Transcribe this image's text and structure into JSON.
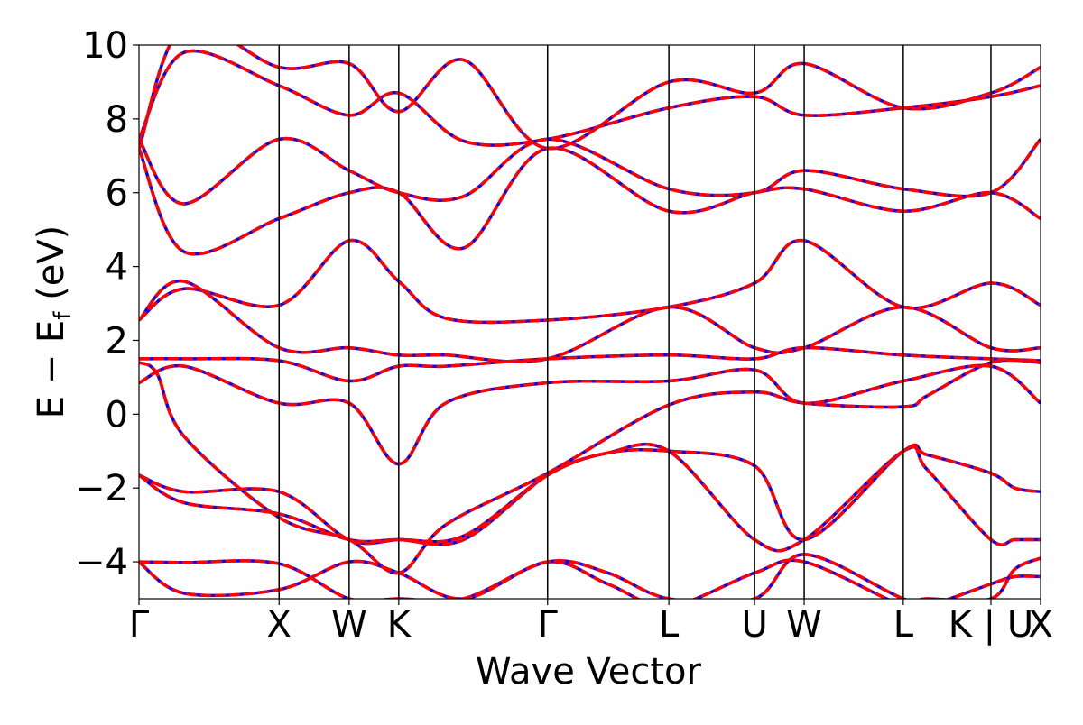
{
  "chart_data": {
    "type": "line",
    "title": "",
    "xlabel": "Wave Vector",
    "ylabel": "E − E",
    "ylabel_sub": "f",
    "ylabel_unit": " (eV)",
    "ylim": [
      -5,
      10
    ],
    "yticks": [
      -4,
      -2,
      0,
      2,
      4,
      6,
      8,
      10
    ],
    "ytick_labels": [
      "−4",
      "−2",
      "0",
      "2",
      "4",
      "6",
      "8",
      "10"
    ],
    "xlim": [
      0,
      1
    ],
    "kpoints": [
      {
        "label": "Γ",
        "x": 0.0
      },
      {
        "label": "X",
        "x": 0.1554
      },
      {
        "label": "W",
        "x": 0.2331
      },
      {
        "label": "K",
        "x": 0.2881
      },
      {
        "label": "Γ",
        "x": 0.4532
      },
      {
        "label": "L",
        "x": 0.5877
      },
      {
        "label": "U",
        "x": 0.6828
      },
      {
        "label": "W",
        "x": 0.7378
      },
      {
        "label": "L",
        "x": 0.8477
      },
      {
        "label": "K | U",
        "x": 0.9449
      },
      {
        "label": "X",
        "x": 1.0
      }
    ],
    "series_styles": [
      {
        "color": "#0000ff",
        "linestyle": "solid"
      },
      {
        "color": "#ff0000",
        "linestyle": "dashed"
      }
    ],
    "bands": [
      {
        "x": [
          0,
          0.05,
          0.1554,
          0.2331,
          0.2881,
          0.36,
          0.4532,
          0.52,
          0.5877,
          0.6828,
          0.7378,
          0.8477,
          0.8742,
          0.9449,
          0.9713,
          1.0
        ],
        "y": [
          -4.0,
          -4.02,
          -4.05,
          -5.0,
          -5.0,
          -5.0,
          -4.0,
          -4.3,
          -5.0,
          -5.0,
          -3.8,
          -5.0,
          -5.0,
          -5.0,
          -4.2,
          -3.9
        ]
      },
      {
        "x": [
          0,
          0.05,
          0.1554,
          0.2331,
          0.2881,
          0.36,
          0.4532,
          0.52,
          0.5877,
          0.6828,
          0.7378,
          0.8477,
          0.8742,
          0.9449,
          0.9713,
          1.0
        ],
        "y": [
          -4.0,
          -4.85,
          -4.75,
          -4.0,
          -4.3,
          -5.0,
          -4.0,
          -4.6,
          -5.2,
          -4.3,
          -4.0,
          -5.2,
          -5.2,
          -4.6,
          -4.4,
          -4.4
        ]
      },
      {
        "x": [
          0,
          0.05,
          0.1554,
          0.2331,
          0.2881,
          0.36,
          0.4532,
          0.52,
          0.5877,
          0.6828,
          0.7378,
          0.8477,
          0.8742,
          0.9449,
          0.9713,
          1.0
        ],
        "y": [
          -1.65,
          -2.1,
          -2.1,
          -3.4,
          -3.4,
          -3.3,
          -1.65,
          -1.05,
          -1.0,
          -1.4,
          -3.4,
          -1.0,
          -1.1,
          -1.6,
          -2.0,
          -2.1
        ]
      },
      {
        "x": [
          0,
          0.05,
          0.1554,
          0.2331,
          0.2881,
          0.36,
          0.4532,
          0.52,
          0.5877,
          0.6828,
          0.7378,
          0.8477,
          0.8742,
          0.9449,
          0.9713,
          1.0
        ],
        "y": [
          -1.65,
          -2.4,
          -2.7,
          -3.4,
          -3.4,
          -3.4,
          -1.65,
          -1.05,
          -1.0,
          -3.4,
          -3.4,
          -1.0,
          -1.5,
          -3.4,
          -3.4,
          -3.4
        ]
      },
      {
        "x": [
          0,
          0.02,
          0.05,
          0.1554,
          0.2331,
          0.2881,
          0.34,
          0.4532,
          0.5877,
          0.6828,
          0.7378,
          0.8477,
          0.8742,
          0.9449,
          1.0
        ],
        "y": [
          1.4,
          1.1,
          -0.6,
          -2.8,
          -3.4,
          -4.3,
          -3.0,
          -1.6,
          0.25,
          0.6,
          0.3,
          0.2,
          0.5,
          1.4,
          1.4
        ]
      },
      {
        "x": [
          0,
          0.05,
          0.1554,
          0.2331,
          0.2881,
          0.34,
          0.4532,
          0.5877,
          0.6828,
          0.7378,
          0.8477,
          0.9449,
          1.0
        ],
        "y": [
          0.85,
          1.3,
          0.3,
          0.3,
          -1.35,
          0.3,
          0.85,
          0.9,
          1.2,
          0.3,
          0.9,
          1.3,
          0.3
        ]
      },
      {
        "x": [
          0,
          0.05,
          0.1554,
          0.2331,
          0.2881,
          0.34,
          0.4532,
          0.5877,
          0.6828,
          0.7378,
          0.8477,
          0.9449,
          1.0
        ],
        "y": [
          1.5,
          1.5,
          1.45,
          0.9,
          1.3,
          1.3,
          1.5,
          1.6,
          1.5,
          1.8,
          1.6,
          1.5,
          1.45
        ]
      },
      {
        "x": [
          0,
          0.05,
          0.1554,
          0.2331,
          0.2881,
          0.34,
          0.4532,
          0.5877,
          0.6828,
          0.7378,
          0.8477,
          0.9449,
          1.0
        ],
        "y": [
          2.55,
          3.6,
          1.8,
          1.8,
          1.6,
          1.6,
          1.5,
          2.9,
          1.8,
          1.8,
          2.9,
          1.8,
          1.8
        ]
      },
      {
        "x": [
          0,
          0.05,
          0.1554,
          0.2331,
          0.2881,
          0.34,
          0.4532,
          0.5877,
          0.6828,
          0.7378,
          0.8477,
          0.9449,
          1.0
        ],
        "y": [
          2.55,
          3.4,
          2.95,
          4.7,
          3.6,
          2.6,
          2.55,
          2.9,
          3.55,
          4.7,
          2.9,
          3.55,
          2.95
        ]
      },
      {
        "x": [
          0,
          0.05,
          0.1554,
          0.2331,
          0.2881,
          0.36,
          0.4532,
          0.5877,
          0.6828,
          0.7378,
          0.8477,
          0.9449,
          1.0
        ],
        "y": [
          7.2,
          4.4,
          5.3,
          6.0,
          6.0,
          4.5,
          7.2,
          5.5,
          6.0,
          6.1,
          5.5,
          6.0,
          5.3
        ]
      },
      {
        "x": [
          0,
          0.05,
          0.1554,
          0.2331,
          0.2881,
          0.36,
          0.4532,
          0.5877,
          0.6828,
          0.7378,
          0.8477,
          0.9449,
          1.0
        ],
        "y": [
          7.45,
          5.7,
          7.45,
          6.6,
          6.0,
          5.9,
          7.45,
          6.1,
          6.0,
          6.6,
          6.1,
          6.0,
          7.45
        ]
      },
      {
        "x": [
          0,
          0.05,
          0.1554,
          0.2331,
          0.2881,
          0.36,
          0.4532,
          0.5877,
          0.6828,
          0.7378,
          0.8477,
          0.9449,
          1.0
        ],
        "y": [
          7.45,
          9.8,
          8.9,
          8.1,
          8.7,
          7.4,
          7.45,
          8.3,
          8.6,
          8.1,
          8.3,
          8.6,
          8.9
        ]
      },
      {
        "x": [
          0,
          0.05,
          0.1554,
          0.2331,
          0.2881,
          0.36,
          0.4532,
          0.5877,
          0.6828,
          0.7378,
          0.8477,
          0.9449,
          1.0
        ],
        "y": [
          7.2,
          10.5,
          9.4,
          9.5,
          8.2,
          9.6,
          7.2,
          9.0,
          8.7,
          9.5,
          8.3,
          8.7,
          9.4
        ]
      }
    ]
  }
}
